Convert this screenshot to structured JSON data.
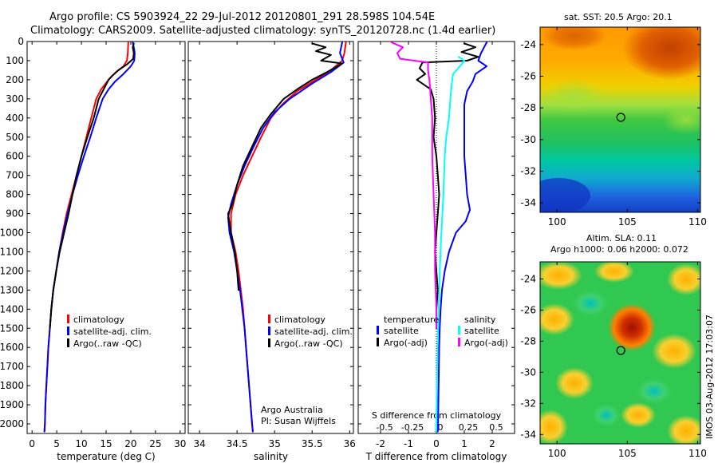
{
  "title": {
    "line1": "Argo profile: CS 5903924_22 29-Jul-2012 20120801_291 28.598S 104.54E",
    "line2": "Climatology: CARS2009. Satellite-adjusted climatology: synTS_20120728.nc (1.4d earlier)"
  },
  "colors": {
    "climatology": "#ff0000",
    "satellite": "#0000ff",
    "argo": "#000000",
    "sal_satellite": "#00ffff",
    "sal_argo": "#ff00ff"
  },
  "chart_data": [
    {
      "type": "line",
      "name": "temperature",
      "xlabel": "temperature (deg C)",
      "xlim": [
        -1,
        31
      ],
      "ylim": [
        2050,
        0
      ],
      "xticks": [
        0,
        5,
        10,
        15,
        20,
        25,
        30
      ],
      "yticks": [
        0,
        100,
        200,
        300,
        400,
        500,
        600,
        700,
        800,
        900,
        1000,
        1100,
        1200,
        1300,
        1400,
        1500,
        1600,
        1700,
        1800,
        1900,
        2000
      ],
      "legend": [
        "climatology",
        "satellite-adj. clim.",
        "Argo(..raw -QC)"
      ],
      "series": [
        {
          "name": "climatology",
          "color": "#ff0000",
          "points": [
            [
              19.5,
              5
            ],
            [
              19.4,
              60
            ],
            [
              19.2,
              100
            ],
            [
              18.5,
              130
            ],
            [
              17,
              160
            ],
            [
              15.5,
              200
            ],
            [
              14,
              250
            ],
            [
              13,
              300
            ],
            [
              12,
              400
            ],
            [
              11,
              500
            ],
            [
              10,
              600
            ],
            [
              9,
              700
            ],
            [
              8,
              800
            ],
            [
              7,
              900
            ],
            [
              6.2,
              1000
            ],
            [
              5.5,
              1100
            ],
            [
              4.9,
              1200
            ],
            [
              4.3,
              1300
            ],
            [
              3.9,
              1400
            ],
            [
              3.6,
              1500
            ],
            [
              3.3,
              1600
            ],
            [
              3.1,
              1700
            ],
            [
              2.9,
              1800
            ],
            [
              2.7,
              1900
            ],
            [
              2.6,
              2000
            ],
            [
              2.5,
              2040
            ]
          ]
        },
        {
          "name": "satellite-adj. clim.",
          "color": "#0000ff",
          "points": [
            [
              20.4,
              5
            ],
            [
              20.6,
              30
            ],
            [
              20.8,
              60
            ],
            [
              20.7,
              100
            ],
            [
              20,
              130
            ],
            [
              18.5,
              170
            ],
            [
              16.8,
              210
            ],
            [
              15.5,
              250
            ],
            [
              14.3,
              300
            ],
            [
              13,
              400
            ],
            [
              11.8,
              500
            ],
            [
              10.5,
              600
            ],
            [
              9.3,
              700
            ],
            [
              8.2,
              800
            ],
            [
              7.2,
              900
            ],
            [
              6.3,
              1000
            ],
            [
              5.5,
              1100
            ],
            [
              4.9,
              1200
            ],
            [
              4.3,
              1300
            ],
            [
              3.9,
              1400
            ],
            [
              3.6,
              1500
            ],
            [
              3.3,
              1600
            ],
            [
              3.1,
              1700
            ],
            [
              2.9,
              1800
            ],
            [
              2.7,
              1900
            ],
            [
              2.6,
              2000
            ],
            [
              2.5,
              2040
            ]
          ]
        },
        {
          "name": "Argo",
          "color": "#000000",
          "points": [
            [
              20.6,
              10
            ],
            [
              20.4,
              30
            ],
            [
              20.6,
              60
            ],
            [
              20.5,
              90
            ],
            [
              19.2,
              120
            ],
            [
              17.5,
              150
            ],
            [
              16.2,
              180
            ],
            [
              15.5,
              200
            ],
            [
              14.5,
              250
            ],
            [
              13.5,
              300
            ],
            [
              12.5,
              400
            ],
            [
              11.2,
              500
            ],
            [
              10,
              600
            ],
            [
              9,
              700
            ],
            [
              8.2,
              800
            ],
            [
              7.4,
              900
            ],
            [
              6.5,
              1000
            ],
            [
              5.6,
              1100
            ],
            [
              4.9,
              1200
            ],
            [
              4.3,
              1300
            ],
            [
              3.9,
              1400
            ],
            [
              3.6,
              1500
            ]
          ]
        }
      ]
    },
    {
      "type": "line",
      "name": "salinity",
      "xlabel": "salinity",
      "xlim": [
        33.85,
        36.05
      ],
      "ylim": [
        2050,
        0
      ],
      "xticks": [
        34,
        34.5,
        35,
        35.5,
        36
      ],
      "xtick_labels": [
        "34",
        "34.5",
        "35",
        "35.5",
        "36"
      ],
      "legend": [
        "climatology",
        "satellite-adj. clim.",
        "Argo(..raw -QC)"
      ],
      "annotation": [
        "Argo Australia",
        "PI: Susan Wijffels"
      ],
      "series": [
        {
          "name": "climatology",
          "color": "#ff0000",
          "points": [
            [
              35.95,
              5
            ],
            [
              35.93,
              60
            ],
            [
              35.9,
              100
            ],
            [
              35.75,
              150
            ],
            [
              35.55,
              200
            ],
            [
              35.3,
              260
            ],
            [
              35.1,
              330
            ],
            [
              34.95,
              400
            ],
            [
              34.82,
              500
            ],
            [
              34.7,
              600
            ],
            [
              34.58,
              700
            ],
            [
              34.48,
              800
            ],
            [
              34.42,
              900
            ],
            [
              34.42,
              1000
            ],
            [
              34.48,
              1100
            ],
            [
              34.52,
              1200
            ],
            [
              34.55,
              1300
            ],
            [
              34.58,
              1400
            ],
            [
              34.6,
              1500
            ],
            [
              34.62,
              1600
            ],
            [
              34.64,
              1700
            ],
            [
              34.66,
              1800
            ],
            [
              34.68,
              1900
            ],
            [
              34.7,
              2000
            ],
            [
              34.71,
              2040
            ]
          ]
        },
        {
          "name": "satellite-adj. clim.",
          "color": "#0000ff",
          "points": [
            [
              35.9,
              5
            ],
            [
              35.87,
              60
            ],
            [
              35.92,
              110
            ],
            [
              35.75,
              160
            ],
            [
              35.5,
              220
            ],
            [
              35.2,
              300
            ],
            [
              35,
              370
            ],
            [
              34.85,
              450
            ],
            [
              34.72,
              550
            ],
            [
              34.6,
              650
            ],
            [
              34.5,
              750
            ],
            [
              34.42,
              850
            ],
            [
              34.38,
              920
            ],
            [
              34.4,
              1000
            ],
            [
              34.46,
              1100
            ],
            [
              34.5,
              1200
            ],
            [
              34.54,
              1300
            ],
            [
              34.57,
              1400
            ],
            [
              34.6,
              1500
            ],
            [
              34.62,
              1600
            ],
            [
              34.64,
              1700
            ],
            [
              34.66,
              1800
            ],
            [
              34.68,
              1900
            ],
            [
              34.7,
              2000
            ],
            [
              34.71,
              2040
            ]
          ]
        },
        {
          "name": "Argo",
          "color": "#000000",
          "points": [
            [
              35.5,
              10
            ],
            [
              35.68,
              30
            ],
            [
              35.55,
              50
            ],
            [
              35.75,
              70
            ],
            [
              35.62,
              100
            ],
            [
              35.9,
              115
            ],
            [
              35.7,
              160
            ],
            [
              35.5,
              200
            ],
            [
              35.3,
              250
            ],
            [
              35.12,
              300
            ],
            [
              34.95,
              380
            ],
            [
              34.82,
              450
            ],
            [
              34.7,
              550
            ],
            [
              34.58,
              650
            ],
            [
              34.5,
              750
            ],
            [
              34.44,
              850
            ],
            [
              34.38,
              900
            ],
            [
              34.4,
              950
            ],
            [
              34.42,
              1000
            ],
            [
              34.47,
              1100
            ],
            [
              34.5,
              1200
            ],
            [
              34.52,
              1300
            ]
          ]
        }
      ]
    },
    {
      "type": "line",
      "name": "difference",
      "xlabel": "T difference from climatology",
      "xlabel_top": "S difference from climatology",
      "xlim": [
        -2.8,
        2.8
      ],
      "ylim": [
        2050,
        0
      ],
      "xticks": [
        -2,
        -1,
        0,
        1,
        2
      ],
      "top_ticks": [
        -2,
        -1,
        0,
        1,
        2
      ],
      "top_tick_labels": [
        "-0.5",
        "-0.25",
        "0",
        "0.25",
        "0.5"
      ],
      "legend": {
        "temperature": [
          "satellite",
          "Argo(-adj)"
        ],
        "salinity": [
          "satellite",
          "Argo(-adj)"
        ]
      },
      "legend_titles": {
        "temperature": "temperature",
        "salinity": "salinity"
      },
      "series": [
        {
          "name": "temperature satellite",
          "color": "#0000ff",
          "points": [
            [
              1.8,
              5
            ],
            [
              1.6,
              60
            ],
            [
              1.5,
              100
            ],
            [
              1.8,
              130
            ],
            [
              1.4,
              170
            ],
            [
              1.3,
              210
            ],
            [
              1.1,
              260
            ],
            [
              1,
              330
            ],
            [
              1,
              400
            ],
            [
              1,
              500
            ],
            [
              1,
              600
            ],
            [
              1.05,
              700
            ],
            [
              1.1,
              800
            ],
            [
              1.2,
              880
            ],
            [
              1.05,
              940
            ],
            [
              0.7,
              1000
            ],
            [
              0.45,
              1100
            ],
            [
              0.3,
              1200
            ],
            [
              0.2,
              1300
            ],
            [
              0.15,
              1400
            ],
            [
              0.12,
              1500
            ],
            [
              0.1,
              1600
            ],
            [
              0.08,
              1800
            ],
            [
              0.06,
              2000
            ],
            [
              0.05,
              2040
            ]
          ]
        },
        {
          "name": "temperature Argo(-adj)",
          "color": "#000000",
          "points": [
            [
              1.0,
              10
            ],
            [
              1.4,
              30
            ],
            [
              0.9,
              55
            ],
            [
              1.5,
              80
            ],
            [
              1.1,
              100
            ],
            [
              -0.5,
              110
            ],
            [
              -0.6,
              140
            ],
            [
              -0.4,
              170
            ],
            [
              -0.7,
              200
            ],
            [
              -0.2,
              250
            ],
            [
              -0.1,
              300
            ],
            [
              -0.05,
              400
            ],
            [
              -0.1,
              500
            ],
            [
              0,
              600
            ],
            [
              0.05,
              700
            ],
            [
              0.1,
              800
            ],
            [
              0.05,
              900
            ],
            [
              0,
              1000
            ],
            [
              -0.05,
              1100
            ],
            [
              0,
              1200
            ],
            [
              0.05,
              1300
            ],
            [
              0,
              1400
            ],
            [
              0,
              1500
            ]
          ]
        },
        {
          "name": "salinity satellite",
          "color": "#00ffff",
          "points": [
            [
              0.8,
              80
            ],
            [
              1.0,
              100
            ],
            [
              0.9,
              120
            ],
            [
              0.6,
              170
            ],
            [
              0.55,
              220
            ],
            [
              0.5,
              300
            ],
            [
              0.45,
              400
            ],
            [
              0.35,
              500
            ],
            [
              0.3,
              600
            ],
            [
              0.25,
              800
            ],
            [
              0.18,
              1000
            ],
            [
              0.12,
              1200
            ],
            [
              0.08,
              1400
            ],
            [
              0.04,
              1600
            ],
            [
              0.02,
              1800
            ],
            [
              0,
              2000
            ],
            [
              -0.02,
              2040
            ]
          ]
        },
        {
          "name": "salinity Argo(-adj)",
          "color": "#ff00ff",
          "points": [
            [
              -1.6,
              5
            ],
            [
              -1.2,
              30
            ],
            [
              -1.4,
              60
            ],
            [
              -1.3,
              90
            ],
            [
              -0.3,
              110
            ],
            [
              -0.3,
              150
            ],
            [
              -0.25,
              200
            ],
            [
              -0.2,
              300
            ],
            [
              -0.15,
              400
            ],
            [
              -0.15,
              600
            ],
            [
              -0.1,
              800
            ],
            [
              -0.05,
              1000
            ],
            [
              -0.05,
              1200
            ],
            [
              0,
              1400
            ],
            [
              0,
              1500
            ]
          ]
        }
      ]
    },
    {
      "type": "heatmap",
      "name": "sst-map",
      "title": "sat. SST: 20.5  Argo: 20.1",
      "xticks": [
        100,
        105,
        110
      ],
      "yticks": [
        -24,
        -26,
        -28,
        -30,
        -32,
        -34
      ],
      "xlim": [
        98.8,
        110.2
      ],
      "ylim": [
        -34.6,
        -22.9
      ],
      "marker": [
        104.54,
        -28.598
      ]
    },
    {
      "type": "heatmap",
      "name": "sla-map",
      "title_line1": "Altim. SLA: 0.11",
      "title_line2": "Argo h1000: 0.06 h2000: 0.072",
      "xticks": [
        100,
        105,
        110
      ],
      "yticks": [
        -24,
        -26,
        -28,
        -30,
        -32,
        -34
      ],
      "xlim": [
        98.8,
        110.2
      ],
      "ylim": [
        -34.6,
        -22.9
      ],
      "marker": [
        104.54,
        -28.598
      ]
    }
  ],
  "footer": "IMOS 03-Aug-2012 17:03:07"
}
